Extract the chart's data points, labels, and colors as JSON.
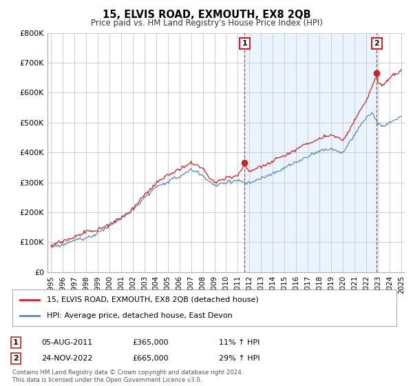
{
  "title": "15, ELVIS ROAD, EXMOUTH, EX8 2QB",
  "subtitle": "Price paid vs. HM Land Registry's House Price Index (HPI)",
  "legend_line1": "15, ELVIS ROAD, EXMOUTH, EX8 2QB (detached house)",
  "legend_line2": "HPI: Average price, detached house, East Devon",
  "footnote": "Contains HM Land Registry data © Crown copyright and database right 2024.\nThis data is licensed under the Open Government Licence v3.0.",
  "marker1_date": "05-AUG-2011",
  "marker1_price": "£365,000",
  "marker1_hpi": "11% ↑ HPI",
  "marker1_year": 2011.58,
  "marker1_value": 365000,
  "marker2_date": "24-NOV-2022",
  "marker2_price": "£665,000",
  "marker2_hpi": "29% ↑ HPI",
  "marker2_year": 2022.9,
  "marker2_value": 665000,
  "hpi_color": "#5588bb",
  "price_color": "#cc2222",
  "marker_color": "#cc2222",
  "dashed_color": "#cc2222",
  "shade_color": "#ddeeff",
  "background_color": "#ffffff",
  "grid_color": "#cccccc",
  "ylim": [
    0,
    800000
  ],
  "yticks": [
    0,
    100000,
    200000,
    300000,
    400000,
    500000,
    600000,
    700000,
    800000
  ],
  "ytick_labels": [
    "£0",
    "£100K",
    "£200K",
    "£300K",
    "£400K",
    "£500K",
    "£600K",
    "£700K",
    "£800K"
  ],
  "xlim_start": 1994.7,
  "xlim_end": 2025.3,
  "xticks": [
    1995,
    1996,
    1997,
    1998,
    1999,
    2000,
    2001,
    2002,
    2003,
    2004,
    2005,
    2006,
    2007,
    2008,
    2009,
    2010,
    2011,
    2012,
    2013,
    2014,
    2015,
    2016,
    2017,
    2018,
    2019,
    2020,
    2021,
    2022,
    2023,
    2024,
    2025
  ]
}
